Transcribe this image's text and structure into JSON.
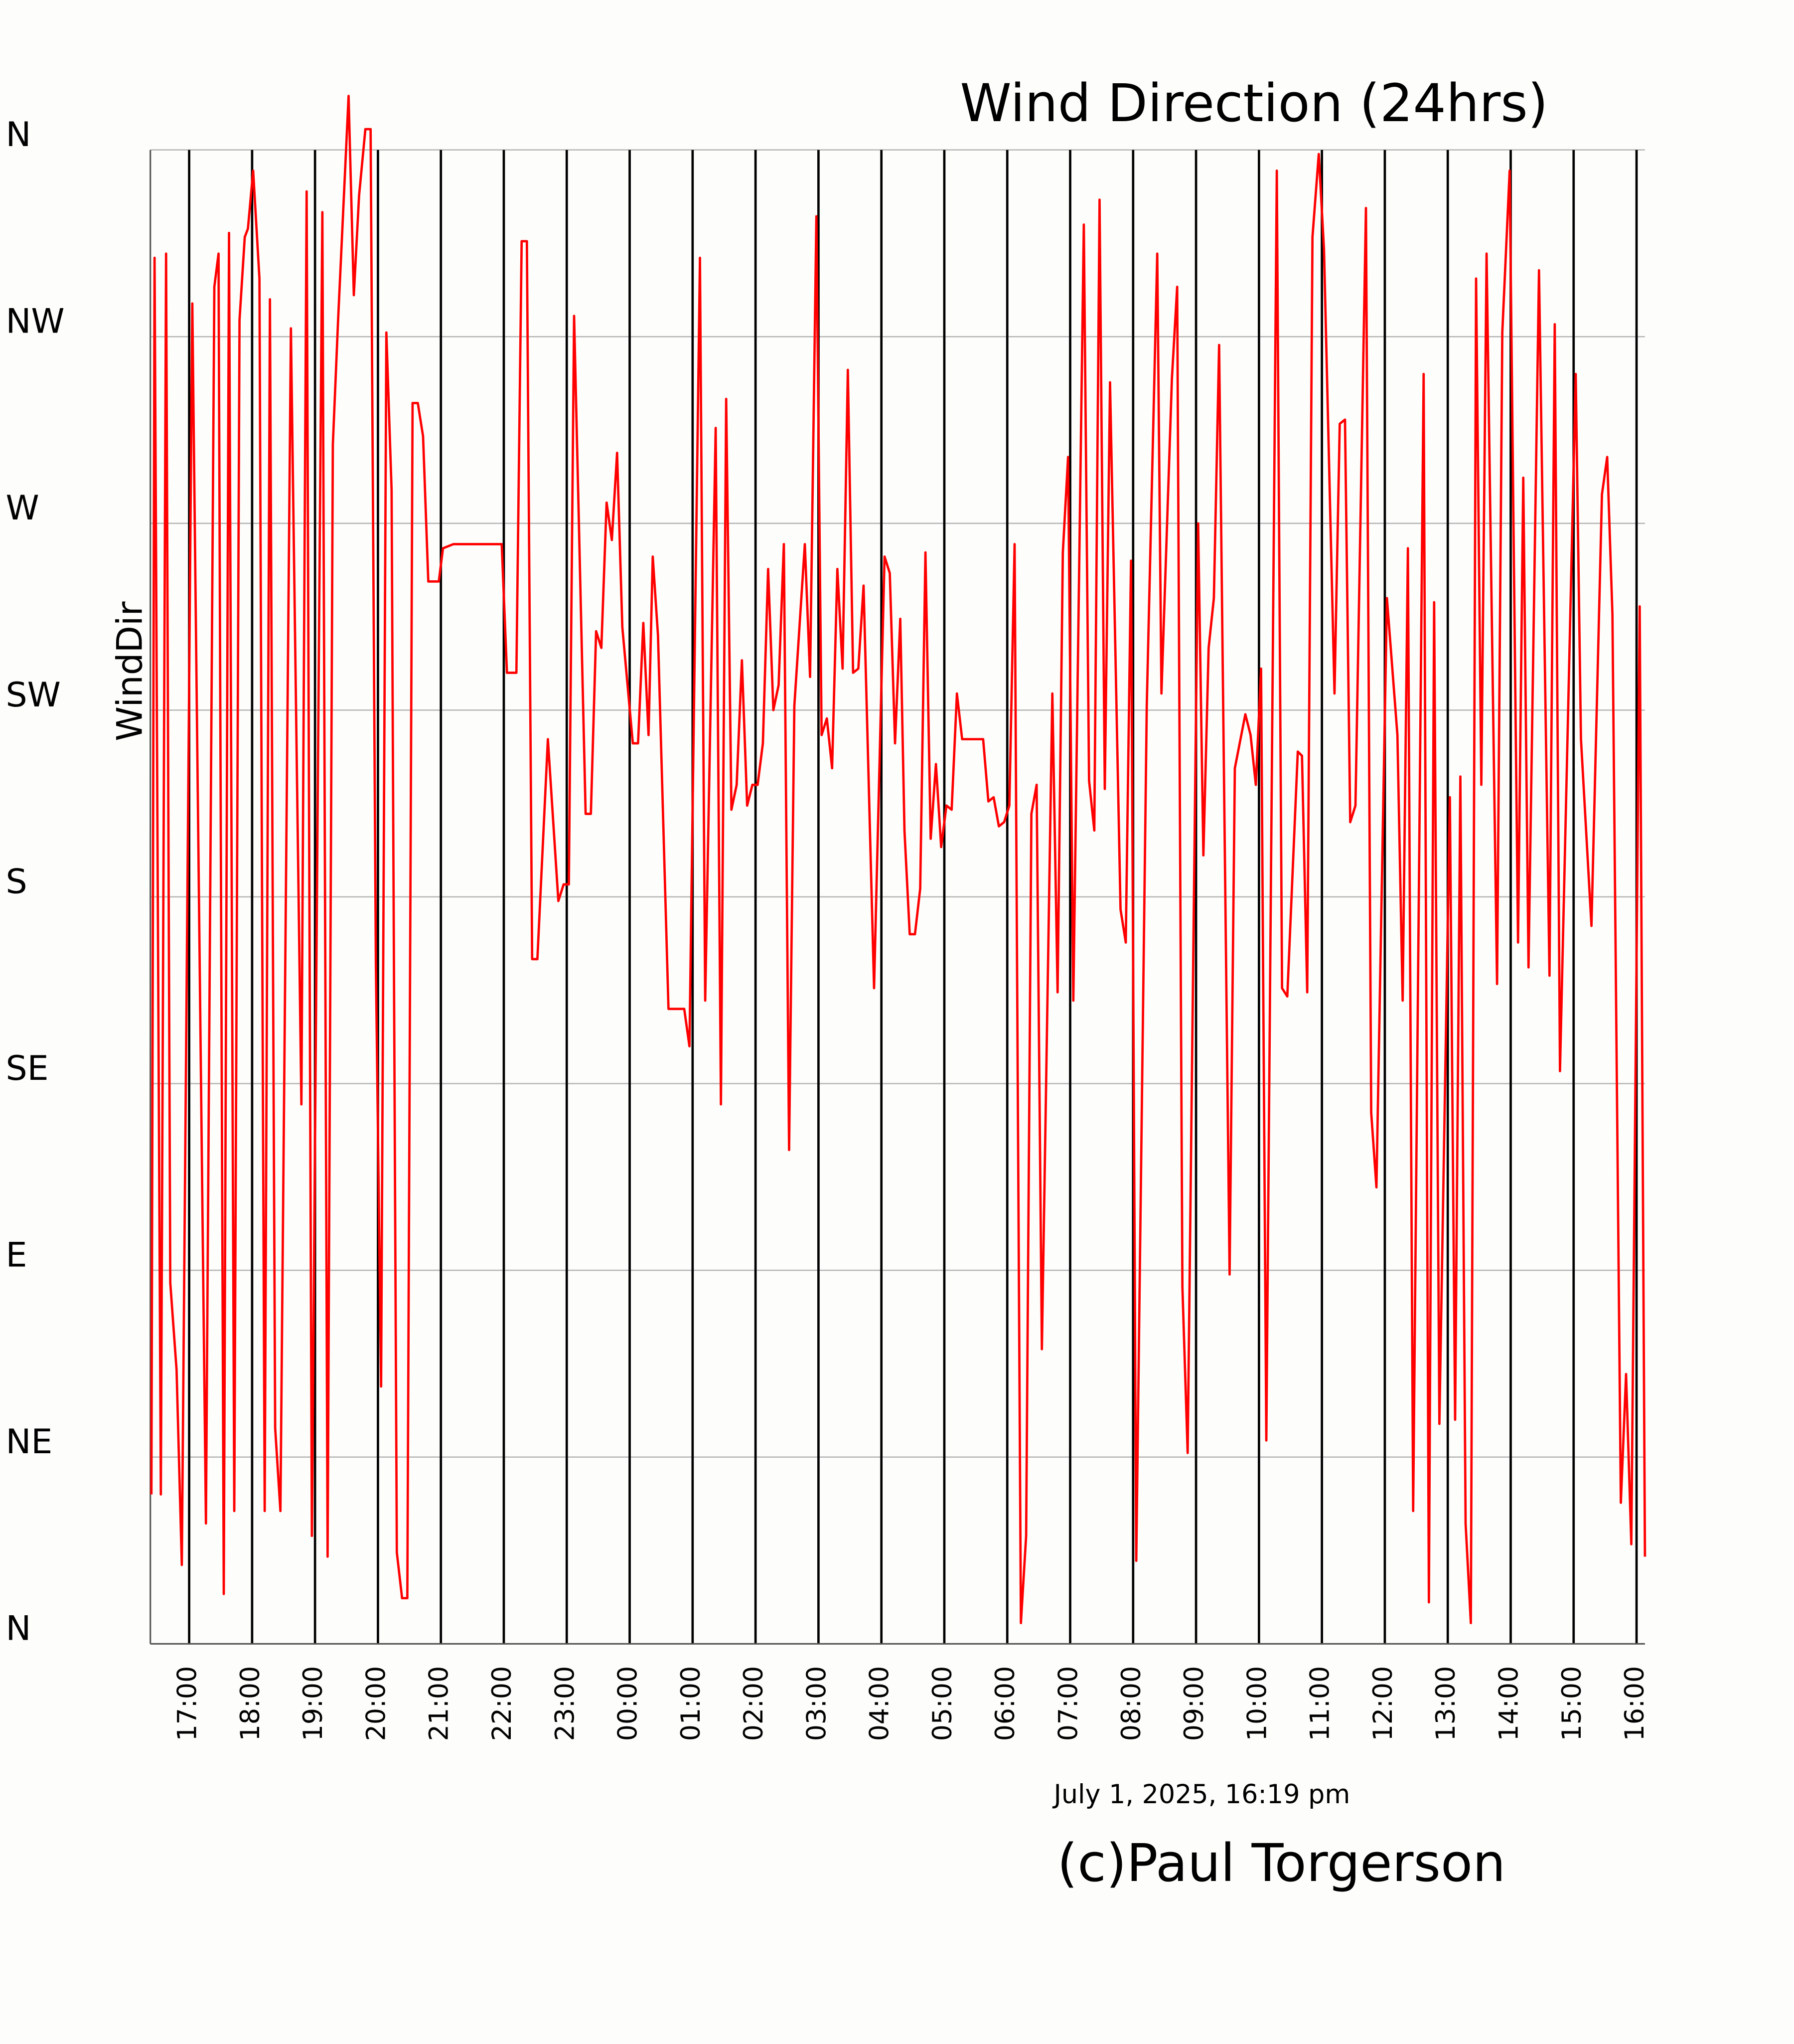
{
  "chart_data": {
    "type": "line",
    "title": "Wind Direction (24hrs)",
    "y_label": "WindDir",
    "timestamp": "July 1, 2025, 16:19 pm",
    "credit": "(c)Paul Torgerson",
    "color": "#ff0000",
    "title_color": "#ff0000",
    "grid": true,
    "xlim": [
      "16:23",
      "16:08"
    ],
    "xticks": [
      "17:00",
      "18:00",
      "19:00",
      "20:00",
      "21:00",
      "22:00",
      "23:00",
      "00:00",
      "01:00",
      "02:00",
      "03:00",
      "04:00",
      "05:00",
      "06:00",
      "07:00",
      "08:00",
      "09:00",
      "10:00",
      "11:00",
      "12:00",
      "13:00",
      "14:00",
      "15:00",
      "16:00"
    ],
    "ylim": [
      0,
      360
    ],
    "yticks": [
      {
        "value": 0,
        "label": "N"
      },
      {
        "value": 45,
        "label": "NE"
      },
      {
        "value": 90,
        "label": "E"
      },
      {
        "value": 135,
        "label": "SE"
      },
      {
        "value": 180,
        "label": "S"
      },
      {
        "value": 225,
        "label": "SW"
      },
      {
        "value": 270,
        "label": "W"
      },
      {
        "value": 315,
        "label": "NW"
      },
      {
        "value": 360,
        "label": "N"
      }
    ],
    "x": [
      "16:24",
      "16:27",
      "16:33",
      "16:38",
      "16:42",
      "16:48",
      "16:53",
      "17:03",
      "17:16",
      "17:24",
      "17:28",
      "17:33",
      "17:38",
      "17:43",
      "17:48",
      "17:53",
      "17:56",
      "18:01",
      "18:07",
      "18:12",
      "18:17",
      "18:22",
      "18:27",
      "18:37",
      "18:47",
      "18:52",
      "18:57",
      "19:07",
      "19:12",
      "19:17",
      "19:22",
      "19:32",
      "19:37",
      "19:42",
      "19:48",
      "19:53",
      "19:58",
      "20:03",
      "20:08",
      "20:13",
      "20:18",
      "20:23",
      "20:28",
      "20:33",
      "20:38",
      "20:43",
      "20:48",
      "20:58",
      "21:02",
      "21:12",
      "21:58",
      "22:03",
      "22:12",
      "22:17",
      "22:22",
      "22:27",
      "22:32",
      "22:42",
      "22:52",
      "22:57",
      "23:02",
      "23:07",
      "23:18",
      "23:23",
      "23:28",
      "23:33",
      "23:38",
      "23:43",
      "23:48",
      "23:53",
      "00:03",
      "00:08",
      "00:13",
      "00:18",
      "00:22",
      "00:27",
      "00:37",
      "00:52",
      "00:57",
      "01:07",
      "01:12",
      "01:22",
      "01:27",
      "01:32",
      "01:37",
      "01:42",
      "01:47",
      "01:52",
      "01:57",
      "02:02",
      "02:07",
      "02:12",
      "02:17",
      "02:22",
      "02:27",
      "02:32",
      "02:37",
      "02:47",
      "02:52",
      "02:58",
      "03:03",
      "03:08",
      "03:13",
      "03:18",
      "03:23",
      "03:28",
      "03:33",
      "03:38",
      "03:43",
      "03:53",
      "04:03",
      "04:08",
      "04:13",
      "04:18",
      "04:22",
      "04:27",
      "04:32",
      "04:37",
      "04:42",
      "04:47",
      "04:52",
      "04:57",
      "05:02",
      "05:07",
      "05:12",
      "05:17",
      "05:37",
      "05:42",
      "05:47",
      "05:52",
      "05:57",
      "06:02",
      "06:07",
      "06:13",
      "06:18",
      "06:23",
      "06:28",
      "06:33",
      "06:43",
      "06:48",
      "06:53",
      "06:58",
      "07:03",
      "07:13",
      "07:18",
      "07:23",
      "07:28",
      "07:33",
      "07:38",
      "07:48",
      "07:53",
      "07:58",
      "08:03",
      "08:13",
      "08:23",
      "08:27",
      "08:37",
      "08:42",
      "08:47",
      "08:52",
      "09:02",
      "09:07",
      "09:12",
      "09:17",
      "09:22",
      "09:32",
      "09:37",
      "09:47",
      "09:52",
      "09:57",
      "10:02",
      "10:07",
      "10:17",
      "10:22",
      "10:27",
      "10:37",
      "10:41",
      "10:46",
      "10:51",
      "10:57",
      "11:02",
      "11:12",
      "11:17",
      "11:22",
      "11:27",
      "11:32",
      "11:42",
      "11:47",
      "11:52",
      "12:02",
      "12:12",
      "12:17",
      "12:22",
      "12:27",
      "12:37",
      "12:42",
      "12:47",
      "12:52",
      "13:02",
      "13:07",
      "13:12",
      "13:17",
      "13:22",
      "13:27",
      "13:32",
      "13:37",
      "13:47",
      "13:52",
      "13:59",
      "14:07",
      "14:12",
      "14:17",
      "14:27",
      "14:37",
      "14:42",
      "14:47",
      "15:02",
      "15:07",
      "15:17",
      "15:27",
      "15:32",
      "15:37",
      "15:45",
      "15:50",
      "15:55",
      "16:03",
      "16:08"
    ],
    "values": [
      36,
      334,
      36,
      335,
      87,
      66,
      19,
      323,
      29,
      327,
      335,
      12,
      340,
      32,
      319,
      339,
      341,
      355,
      329,
      32,
      324,
      52,
      32,
      317,
      130,
      350,
      26,
      345,
      21,
      289,
      319,
      373,
      325,
      349,
      365,
      365,
      164,
      62,
      316,
      278,
      22,
      11,
      11,
      299,
      299,
      291,
      256,
      256,
      264,
      265,
      265,
      234,
      234,
      338,
      338,
      165,
      165,
      218,
      179,
      183,
      183,
      320,
      200,
      200,
      244,
      240,
      275,
      266,
      287,
      245,
      217,
      217,
      246,
      219,
      262,
      243,
      153,
      153,
      144,
      334,
      155,
      293,
      130,
      300,
      201,
      207,
      237,
      202,
      207,
      207,
      217,
      259,
      225,
      231,
      265,
      119,
      226,
      265,
      233,
      344,
      219,
      223,
      211,
      259,
      235,
      307,
      234,
      235,
      255,
      158,
      262,
      258,
      217,
      247,
      196,
      171,
      171,
      182,
      263,
      194,
      212,
      192,
      202,
      201,
      229,
      218,
      218,
      203,
      204,
      197,
      198,
      202,
      265,
      5,
      26,
      200,
      207,
      71,
      229,
      157,
      263,
      286,
      155,
      342,
      208,
      196,
      348,
      206,
      304,
      177,
      169,
      261,
      20,
      226,
      335,
      229,
      305,
      327,
      86,
      46,
      270,
      190,
      240,
      252,
      313,
      89,
      211,
      224,
      219,
      207,
      235,
      49,
      355,
      158,
      156,
      215,
      214,
      157,
      339,
      359,
      336,
      229,
      294,
      295,
      198,
      202,
      346,
      128,
      110,
      252,
      219,
      155,
      264,
      32,
      306,
      10,
      251,
      53,
      204,
      54,
      209,
      29,
      5,
      329,
      207,
      335,
      159,
      316,
      355,
      169,
      281,
      163,
      331,
      161,
      318,
      138,
      306,
      218,
      173,
      277,
      286,
      248,
      34,
      65,
      24,
      250,
      21
    ]
  }
}
